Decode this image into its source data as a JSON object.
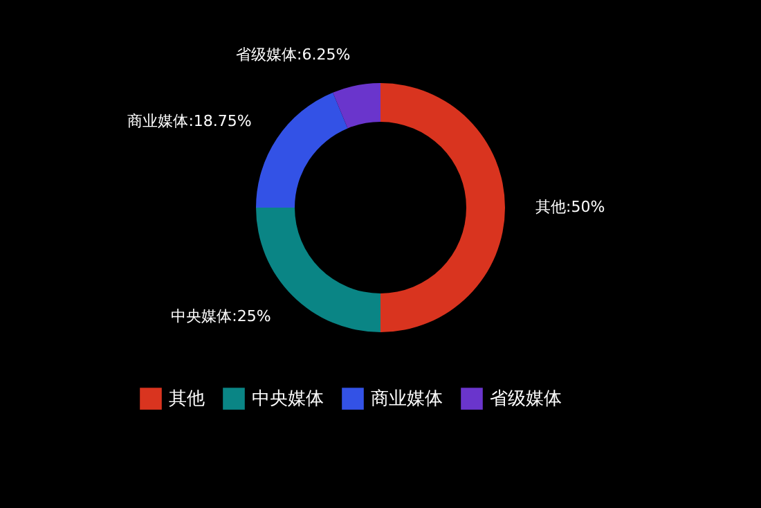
{
  "chart_data": {
    "type": "donut",
    "categories": [
      "其他",
      "中央媒体",
      "商业媒体",
      "省级媒体"
    ],
    "values": [
      50,
      25,
      18.75,
      6.25
    ],
    "colors": [
      "#d9341f",
      "#0a8585",
      "#3352e6",
      "#6a35cc"
    ],
    "value_labels": [
      "其他:50%",
      "中央媒体:25%",
      "商业媒体:18.75%",
      "省级媒体:6.25%"
    ],
    "legend": "bottom"
  }
}
